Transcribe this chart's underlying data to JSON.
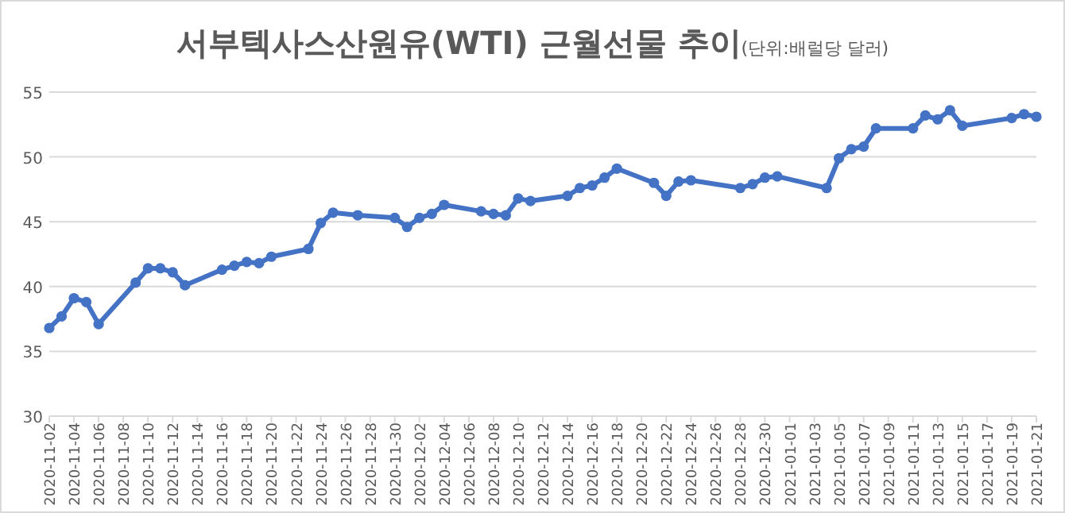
{
  "chart_data": {
    "type": "line",
    "title": "서부텍사스산원유(WTI) 근월선물 추이",
    "subtitle": "(단위:배럴당 달러)",
    "x": [
      "2020-11-02",
      "2020-11-03",
      "2020-11-04",
      "2020-11-05",
      "2020-11-06",
      "2020-11-09",
      "2020-11-10",
      "2020-11-11",
      "2020-11-12",
      "2020-11-13",
      "2020-11-16",
      "2020-11-17",
      "2020-11-18",
      "2020-11-19",
      "2020-11-20",
      "2020-11-23",
      "2020-11-24",
      "2020-11-25",
      "2020-11-27",
      "2020-11-30",
      "2020-12-01",
      "2020-12-02",
      "2020-12-03",
      "2020-12-04",
      "2020-12-07",
      "2020-12-08",
      "2020-12-09",
      "2020-12-10",
      "2020-12-11",
      "2020-12-14",
      "2020-12-15",
      "2020-12-16",
      "2020-12-17",
      "2020-12-18",
      "2020-12-21",
      "2020-12-22",
      "2020-12-23",
      "2020-12-24",
      "2020-12-28",
      "2020-12-29",
      "2020-12-30",
      "2020-12-31",
      "2021-01-04",
      "2021-01-05",
      "2021-01-06",
      "2021-01-07",
      "2021-01-08",
      "2021-01-11",
      "2021-01-12",
      "2021-01-13",
      "2021-01-14",
      "2021-01-15",
      "2021-01-19",
      "2021-01-20",
      "2021-01-21"
    ],
    "values": [
      36.8,
      37.7,
      39.1,
      38.8,
      37.1,
      40.3,
      41.4,
      41.4,
      41.1,
      40.1,
      41.3,
      41.6,
      41.9,
      41.8,
      42.3,
      42.9,
      44.9,
      45.7,
      45.5,
      45.3,
      44.6,
      45.3,
      45.6,
      46.3,
      45.8,
      45.6,
      45.5,
      46.8,
      46.6,
      47.0,
      47.6,
      47.8,
      48.4,
      49.1,
      48.0,
      47.0,
      48.1,
      48.2,
      47.6,
      47.9,
      48.4,
      48.5,
      47.6,
      49.9,
      50.6,
      50.8,
      52.2,
      52.2,
      53.2,
      52.9,
      53.6,
      52.4,
      53.0,
      53.3,
      53.1
    ],
    "color": "#4472c4",
    "marker": "circle",
    "line_style": "solid",
    "grid": "y",
    "xlim": [
      "2020-11-02",
      "2021-01-21"
    ],
    "ylim": [
      30,
      55
    ],
    "xticks": [
      "2020-11-02",
      "2020-11-04",
      "2020-11-06",
      "2020-11-08",
      "2020-11-10",
      "2020-11-12",
      "2020-11-14",
      "2020-11-16",
      "2020-11-18",
      "2020-11-20",
      "2020-11-22",
      "2020-11-24",
      "2020-11-26",
      "2020-11-28",
      "2020-11-30",
      "2020-12-02",
      "2020-12-04",
      "2020-12-06",
      "2020-12-08",
      "2020-12-10",
      "2020-12-12",
      "2020-12-14",
      "2020-12-16",
      "2020-12-18",
      "2020-12-20",
      "2020-12-22",
      "2020-12-24",
      "2020-12-26",
      "2020-12-28",
      "2020-12-30",
      "2021-01-01",
      "2021-01-03",
      "2021-01-05",
      "2021-01-07",
      "2021-01-09",
      "2021-01-11",
      "2021-01-13",
      "2021-01-15",
      "2021-01-17",
      "2021-01-19",
      "2021-01-21"
    ],
    "yticks": [
      30,
      35,
      40,
      45,
      50,
      55
    ]
  }
}
